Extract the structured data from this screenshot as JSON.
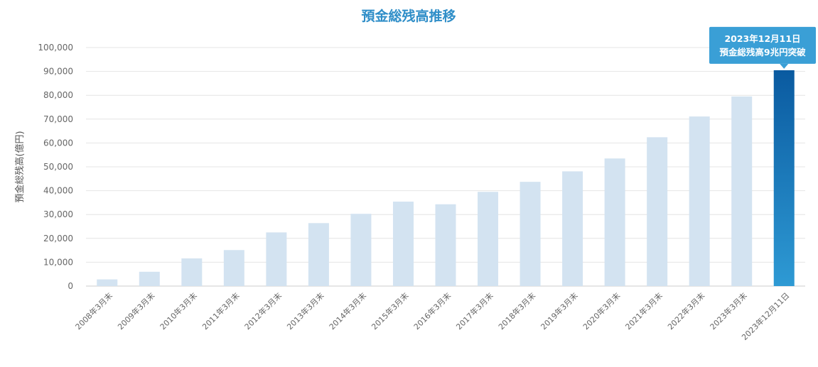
{
  "chart_data": {
    "type": "bar",
    "title": "預金総残高推移",
    "ylabel": "預金総残高(億円)",
    "xlabel": "",
    "ylim": [
      0,
      100000
    ],
    "yticks": [
      "0",
      "10,000",
      "20,000",
      "30,000",
      "40,000",
      "50,000",
      "60,000",
      "70,000",
      "80,000",
      "90,000",
      "100,000"
    ],
    "grid": true,
    "categories": [
      "2008年3月末",
      "2009年3月末",
      "2010年3月末",
      "2011年3月末",
      "2012年3月末",
      "2013年3月末",
      "2014年3月末",
      "2015年3月末",
      "2016年3月末",
      "2017年3月末",
      "2018年3月末",
      "2019年3月末",
      "2020年3月末",
      "2021年3月末",
      "2022年3月末",
      "2023年3月末",
      "2023年12月11日"
    ],
    "values": [
      2800,
      6000,
      11600,
      15100,
      22500,
      26400,
      30300,
      35400,
      34300,
      39500,
      43700,
      48100,
      53500,
      62400,
      71100,
      79500,
      90500
    ],
    "colors": {
      "bar": "#d3e3f1",
      "highlight_top": "#0a5aa0",
      "highlight_bottom": "#2e9ad4",
      "grid": "#e4e4e4",
      "axis": "#cccccc",
      "title": "#2f8ec8",
      "callout": "#3a9fd6"
    },
    "callout": {
      "line1": "2023年12月11日",
      "line2": "預金総残高9兆円突破"
    }
  }
}
